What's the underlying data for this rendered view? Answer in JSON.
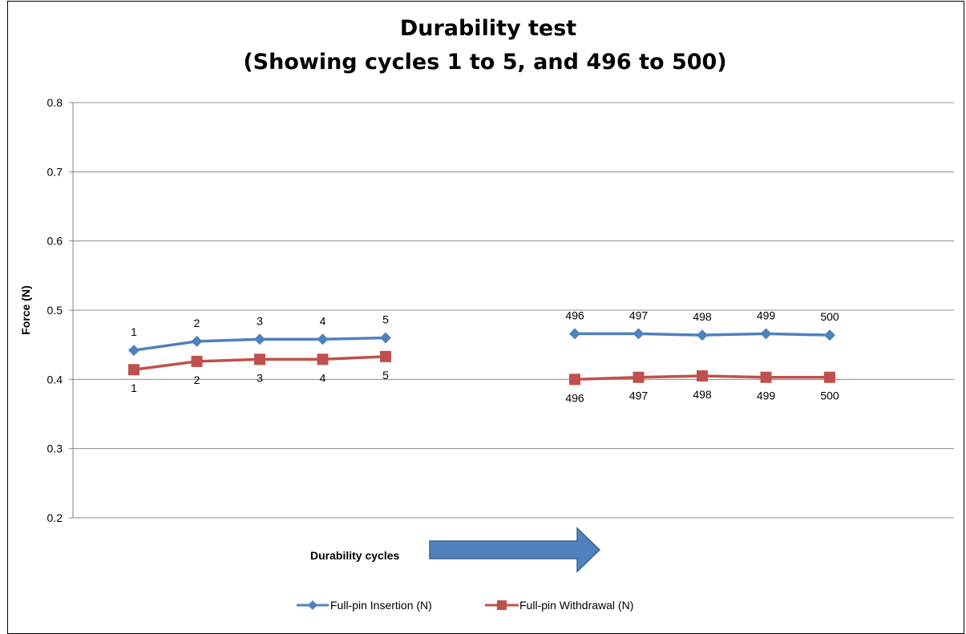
{
  "chart_data": {
    "type": "line",
    "title": "Durability test",
    "subtitle": "(Showing cycles 1 to 5, and 496 to 500)",
    "ylabel": "Force (N)",
    "xlabel": "Durability cycles",
    "ylim": [
      0.2,
      0.8
    ],
    "yticks": [
      "0.8",
      "0.7",
      "0.6",
      "0.5",
      "0.4",
      "0.3",
      "0.2"
    ],
    "grid": true,
    "legend_position": "bottom",
    "categories": [
      "1",
      "2",
      "3",
      "4",
      "5",
      "496",
      "497",
      "498",
      "499",
      "500"
    ],
    "series": [
      {
        "name": "Full-pin Insertion (N)",
        "color": "#4F81BD",
        "marker": "diamond",
        "segments": [
          {
            "x": [
              "1",
              "2",
              "3",
              "4",
              "5"
            ],
            "values": [
              0.442,
              0.455,
              0.458,
              0.458,
              0.46
            ]
          },
          {
            "x": [
              "496",
              "497",
              "498",
              "499",
              "500"
            ],
            "values": [
              0.466,
              0.466,
              0.464,
              0.466,
              0.464
            ]
          }
        ]
      },
      {
        "name": "Full-pin Withdrawal (N)",
        "color": "#C0504D",
        "marker": "square",
        "segments": [
          {
            "x": [
              "1",
              "2",
              "3",
              "4",
              "5"
            ],
            "values": [
              0.414,
              0.426,
              0.429,
              0.429,
              0.433
            ]
          },
          {
            "x": [
              "496",
              "497",
              "498",
              "499",
              "500"
            ],
            "values": [
              0.4,
              0.403,
              0.405,
              0.403,
              0.403
            ]
          }
        ]
      }
    ],
    "annotation_arrow": {
      "color": "#4F81BD",
      "direction": "right"
    }
  }
}
